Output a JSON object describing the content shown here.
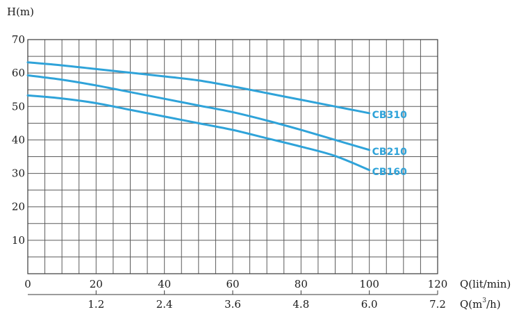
{
  "chart_data": {
    "type": "line",
    "title": "",
    "ylabel": "H(m)",
    "xlabel": "Q(lit/min)",
    "x2label_prefix": "Q(m",
    "x2label_sup": "3",
    "x2label_suffix": "/h)",
    "xlim": [
      0,
      120
    ],
    "ylim": [
      0,
      70
    ],
    "x_ticks": [
      0,
      20,
      40,
      60,
      80,
      100,
      120
    ],
    "x_tick_labels": [
      "0",
      "20",
      "40",
      "60",
      "80",
      "100",
      "120"
    ],
    "x2_ticks": [
      24,
      48,
      72,
      96,
      120,
      144
    ],
    "x2_tick_labels": [
      "1.2",
      "2.4",
      "3.6",
      "4.8",
      "6.0",
      "7.2"
    ],
    "y_ticks": [
      10,
      20,
      30,
      40,
      50,
      60,
      70
    ],
    "y_tick_labels": [
      "10",
      "20",
      "30",
      "40",
      "50",
      "60",
      "70"
    ],
    "grid": true,
    "line_color": "#2fa3d9",
    "series": [
      {
        "name": "CB310",
        "x": [
          0,
          10,
          20,
          30,
          40,
          50,
          60,
          70,
          80,
          90,
          100
        ],
        "values": [
          63.2,
          62.3,
          61.2,
          60.1,
          59.0,
          57.8,
          56.0,
          54.0,
          52.0,
          50.0,
          48.0
        ]
      },
      {
        "name": "CB210",
        "x": [
          0,
          10,
          20,
          30,
          40,
          50,
          60,
          70,
          80,
          90,
          100
        ],
        "values": [
          59.3,
          58.0,
          56.3,
          54.3,
          52.3,
          50.3,
          48.3,
          45.8,
          43.0,
          40.0,
          37.0
        ]
      },
      {
        "name": "CB160",
        "x": [
          0,
          10,
          20,
          30,
          40,
          50,
          60,
          70,
          80,
          90,
          100
        ],
        "values": [
          53.3,
          52.4,
          51.0,
          49.0,
          47.0,
          45.0,
          43.0,
          40.5,
          38.0,
          35.2,
          31.0
        ]
      }
    ]
  }
}
